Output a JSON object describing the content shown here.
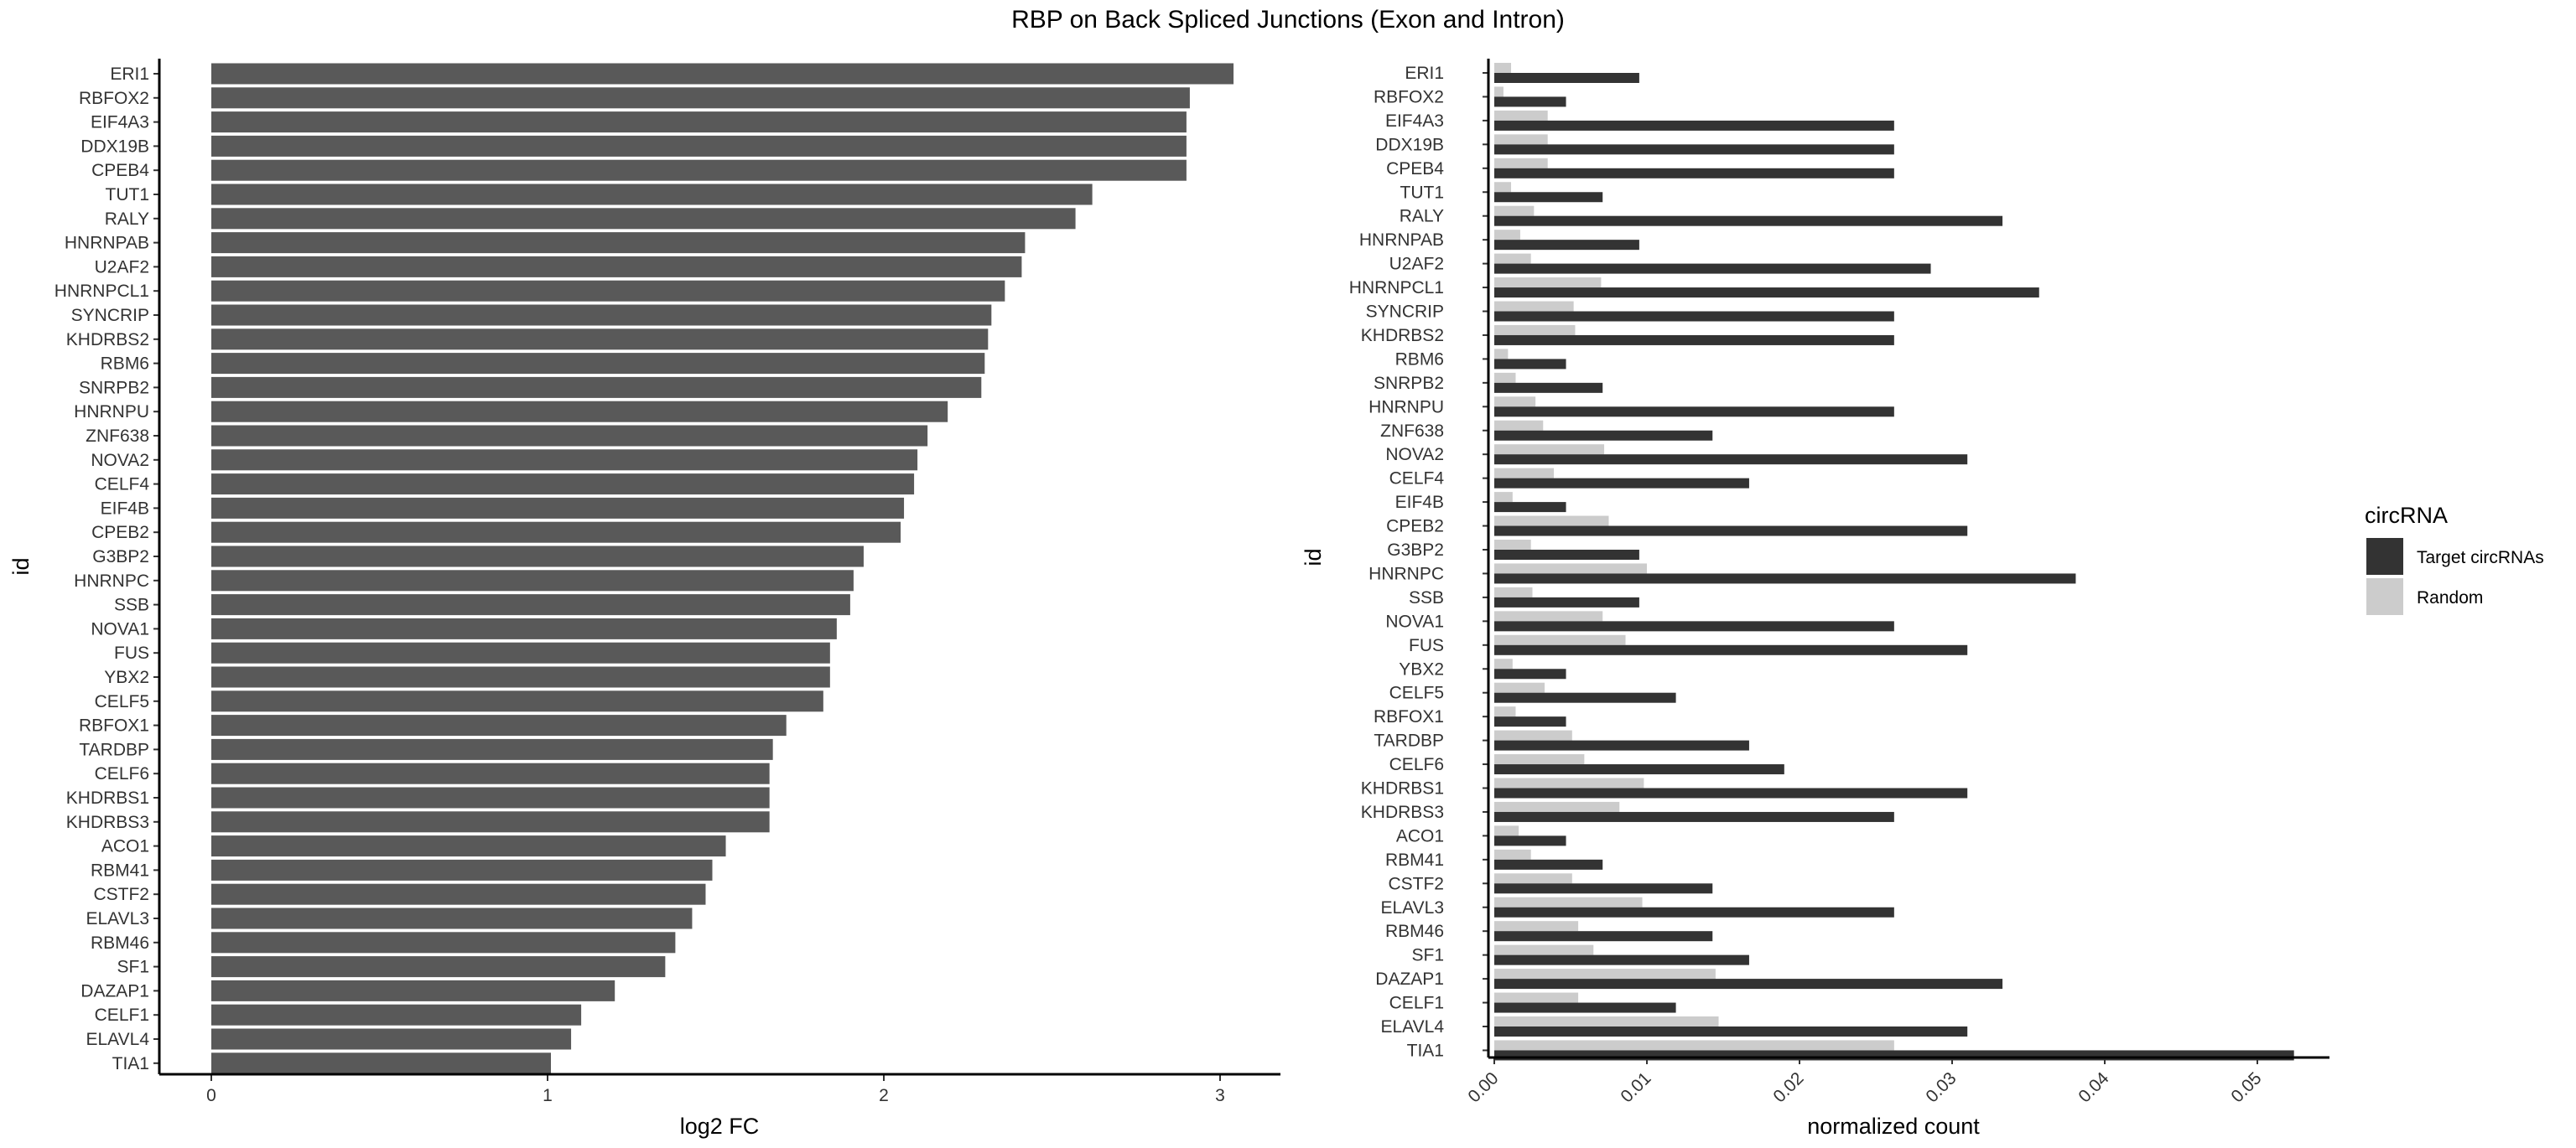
{
  "title": "RBP on Back Spliced Junctions (Exon and Intron)",
  "colors": {
    "bar": "#595959",
    "target": "#333333",
    "random": "#cccccc"
  },
  "chart_data": [
    {
      "type": "bar",
      "orientation": "horizontal",
      "xlabel": "log2 FC",
      "ylabel": "id",
      "xlim": [
        0,
        3.2
      ],
      "xticks": [
        "0",
        "1",
        "2",
        "3"
      ],
      "categories": [
        "ERI1",
        "RBFOX2",
        "EIF4A3",
        "DDX19B",
        "CPEB4",
        "TUT1",
        "RALY",
        "HNRNPAB",
        "U2AF2",
        "HNRNPCL1",
        "SYNCRIP",
        "KHDRBS2",
        "RBM6",
        "SNRPB2",
        "HNRNPU",
        "ZNF638",
        "NOVA2",
        "CELF4",
        "EIF4B",
        "CPEB2",
        "G3BP2",
        "HNRNPC",
        "SSB",
        "NOVA1",
        "FUS",
        "YBX2",
        "CELF5",
        "RBFOX1",
        "TARDBP",
        "CELF6",
        "KHDRBS1",
        "KHDRBS3",
        "ACO1",
        "RBM41",
        "CSTF2",
        "ELAVL3",
        "RBM46",
        "SF1",
        "DAZAP1",
        "CELF1",
        "ELAVL4",
        "TIA1"
      ],
      "values": [
        3.04,
        2.91,
        2.9,
        2.9,
        2.9,
        2.62,
        2.57,
        2.42,
        2.41,
        2.36,
        2.32,
        2.31,
        2.3,
        2.29,
        2.19,
        2.13,
        2.1,
        2.09,
        2.06,
        2.05,
        1.94,
        1.91,
        1.9,
        1.86,
        1.84,
        1.84,
        1.82,
        1.71,
        1.67,
        1.66,
        1.66,
        1.66,
        1.53,
        1.49,
        1.47,
        1.43,
        1.38,
        1.35,
        1.2,
        1.1,
        1.07,
        1.01
      ]
    },
    {
      "type": "bar",
      "orientation": "horizontal",
      "grouped": true,
      "xlabel": "normalized count",
      "ylabel": "id",
      "xlim": [
        0,
        0.055
      ],
      "xticks": [
        "0.00",
        "0.01",
        "0.02",
        "0.03",
        "0.04",
        "0.05"
      ],
      "categories": [
        "ERI1",
        "RBFOX2",
        "EIF4A3",
        "DDX19B",
        "CPEB4",
        "TUT1",
        "RALY",
        "HNRNPAB",
        "U2AF2",
        "HNRNPCL1",
        "SYNCRIP",
        "KHDRBS2",
        "RBM6",
        "SNRPB2",
        "HNRNPU",
        "ZNF638",
        "NOVA2",
        "CELF4",
        "EIF4B",
        "CPEB2",
        "G3BP2",
        "HNRNPC",
        "SSB",
        "NOVA1",
        "FUS",
        "YBX2",
        "CELF5",
        "RBFOX1",
        "TARDBP",
        "CELF6",
        "KHDRBS1",
        "KHDRBS3",
        "ACO1",
        "RBM41",
        "CSTF2",
        "ELAVL3",
        "RBM46",
        "SF1",
        "DAZAP1",
        "CELF1",
        "ELAVL4",
        "TIA1"
      ],
      "legend_title": "circRNA",
      "legend_position": "right",
      "series": [
        {
          "name": "Target circRNAs",
          "values": [
            0.0095,
            0.0047,
            0.0262,
            0.0262,
            0.0262,
            0.0071,
            0.0333,
            0.0095,
            0.0286,
            0.0357,
            0.0262,
            0.0262,
            0.0047,
            0.0071,
            0.0262,
            0.0143,
            0.031,
            0.0167,
            0.0047,
            0.031,
            0.0095,
            0.0381,
            0.0095,
            0.0262,
            0.031,
            0.0047,
            0.0119,
            0.0047,
            0.0167,
            0.019,
            0.031,
            0.0262,
            0.0047,
            0.0071,
            0.0143,
            0.0262,
            0.0143,
            0.0167,
            0.0333,
            0.0119,
            0.031,
            0.0524
          ]
        },
        {
          "name": "Random",
          "values": [
            0.0011,
            0.0006,
            0.0035,
            0.0035,
            0.0035,
            0.0011,
            0.0026,
            0.0017,
            0.0024,
            0.007,
            0.0052,
            0.0053,
            0.0009,
            0.0014,
            0.0027,
            0.0032,
            0.0072,
            0.0039,
            0.0012,
            0.0075,
            0.0024,
            0.01,
            0.0025,
            0.0071,
            0.0086,
            0.0012,
            0.0033,
            0.0014,
            0.0051,
            0.0059,
            0.0098,
            0.0082,
            0.0016,
            0.0024,
            0.0051,
            0.0097,
            0.0055,
            0.0065,
            0.0145,
            0.0055,
            0.0147,
            0.0262
          ]
        }
      ]
    }
  ]
}
